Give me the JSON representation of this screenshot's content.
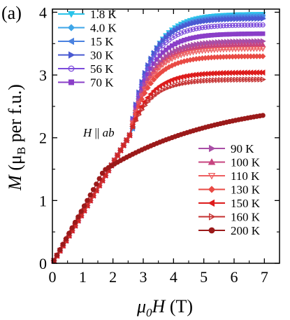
{
  "panel_label": "(a)",
  "chart_data": {
    "type": "scatter",
    "xlabel_parts": [
      "μ",
      "0",
      "H",
      " (T)"
    ],
    "ylabel_parts": [
      "M",
      " (μ",
      "B",
      " per f.u.)"
    ],
    "annotation_parts": [
      "H",
      " || ",
      "ab"
    ],
    "xlim": [
      0,
      7.5
    ],
    "ylim": [
      0,
      4.05
    ],
    "x_ticks": [
      0,
      1,
      2,
      3,
      4,
      5,
      6,
      7
    ],
    "y_ticks": [
      0,
      1,
      2,
      3,
      4
    ],
    "legend_placement": "top-left and bottom-right",
    "series": [
      {
        "name": "1.8 K",
        "color": "#29c4ea",
        "marker": "tri-down",
        "legend": "left",
        "knee": 3.1,
        "sat": 3.97
      },
      {
        "name": "4.0 K",
        "color": "#3ea6e8",
        "marker": "diamond",
        "legend": "left",
        "knee": 3.1,
        "sat": 3.95
      },
      {
        "name": "15 K",
        "color": "#4b82e0",
        "marker": "tri-left",
        "legend": "left",
        "knee": 3.1,
        "sat": 3.93
      },
      {
        "name": "30 K",
        "color": "#4a5ad2",
        "marker": "tri-right",
        "legend": "left",
        "knee": 3.0,
        "sat": 3.9
      },
      {
        "name": "56 K",
        "color": "#7c4bdb",
        "marker": "circle",
        "legend": "left",
        "knee": 3.0,
        "sat": 3.8
      },
      {
        "name": "70 K",
        "color": "#8a3fc8",
        "marker": "square",
        "legend": "left",
        "knee": 3.0,
        "sat": 3.66
      },
      {
        "name": "90 K",
        "color": "#a94fa6",
        "marker": "tri-right",
        "legend": "right",
        "knee": 3.0,
        "sat": 3.54
      },
      {
        "name": "100 K",
        "color": "#c7447f",
        "marker": "tri-up",
        "legend": "right",
        "knee": 3.0,
        "sat": 3.48
      },
      {
        "name": "110 K",
        "color": "#ee5f61",
        "marker": "tri-down",
        "legend": "right",
        "knee": 3.0,
        "sat": 3.42
      },
      {
        "name": "130 K",
        "color": "#e94a44",
        "marker": "diamond",
        "legend": "right",
        "knee": 3.0,
        "sat": 3.3
      },
      {
        "name": "150 K",
        "color": "#dd1c1c",
        "marker": "tri-left",
        "legend": "right",
        "knee": 3.0,
        "sat": 3.04
      },
      {
        "name": "160 K",
        "color": "#c53030",
        "marker": "tri-right",
        "legend": "right",
        "knee": 3.0,
        "sat": 2.93
      },
      {
        "name": "200 K",
        "color": "#9b1a1a",
        "marker": "circle",
        "legend": "right",
        "knee": 1.7,
        "sat": 2.36
      }
    ]
  }
}
